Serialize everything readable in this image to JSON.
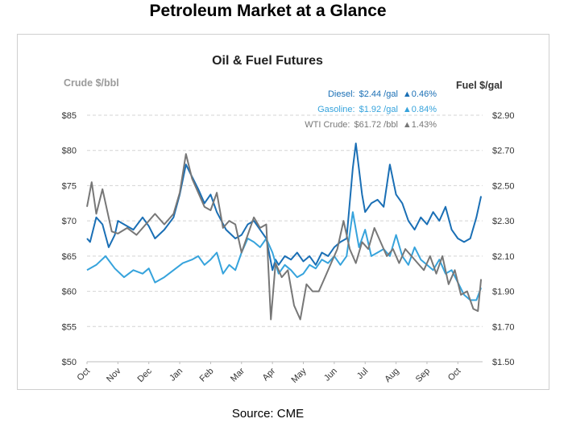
{
  "page": {
    "title": "Petroleum Market at a Glance",
    "source": "Source: CME"
  },
  "chart_data": {
    "type": "line",
    "title": "Oil & Fuel Futures",
    "left_axis_label": "Crude $/bbl",
    "right_axis_label": "Fuel $/gal",
    "left_ylim": [
      50,
      85
    ],
    "right_ylim": [
      1.5,
      2.9
    ],
    "left_ticks": [
      "$50",
      "$55",
      "$60",
      "$65",
      "$70",
      "$75",
      "$80",
      "$85"
    ],
    "right_ticks": [
      "$1.50",
      "$1.70",
      "$1.90",
      "$2.10",
      "$2.30",
      "$2.50",
      "$2.70",
      "$2.90"
    ],
    "x_labels": [
      "Oct",
      "Nov",
      "Dec",
      "Jan",
      "Feb",
      "Mar",
      "Apr",
      "May",
      "Jun",
      "Jul",
      "Aug",
      "Sep",
      "Oct"
    ],
    "grid": "horizontal dashed",
    "legend": [
      {
        "name": "Diesel:",
        "price": "$2.44 /gal",
        "change": "▲0.46%",
        "color": "#1a6fb5"
      },
      {
        "name": "Gasoline:",
        "price": "$1.92 /gal",
        "change": "▲0.84%",
        "color": "#36a3dc"
      },
      {
        "name": "WTI Crude:",
        "price": "$61.72 /bbl",
        "change": "▲1.43%",
        "color": "#777777"
      }
    ],
    "series": [
      {
        "name": "Diesel",
        "axis": "right",
        "color": "#1a6fb5",
        "x": [
          0,
          0.1,
          0.3,
          0.5,
          0.7,
          0.9,
          1.0,
          1.2,
          1.5,
          1.8,
          2.0,
          2.2,
          2.5,
          2.8,
          3.0,
          3.2,
          3.4,
          3.6,
          3.8,
          4.0,
          4.2,
          4.5,
          4.8,
          5.0,
          5.2,
          5.4,
          5.6,
          5.8,
          6.0,
          6.1,
          6.2,
          6.4,
          6.6,
          6.8,
          7.0,
          7.2,
          7.4,
          7.6,
          7.8,
          8.0,
          8.2,
          8.4,
          8.6,
          8.7,
          8.9,
          9.0,
          9.2,
          9.4,
          9.6,
          9.8,
          10.0,
          10.2,
          10.4,
          10.6,
          10.8,
          11.0,
          11.2,
          11.4,
          11.6,
          11.8,
          12.0,
          12.2,
          12.4,
          12.6,
          12.75
        ],
        "values": [
          2.2,
          2.18,
          2.32,
          2.28,
          2.15,
          2.22,
          2.3,
          2.28,
          2.25,
          2.32,
          2.27,
          2.2,
          2.25,
          2.32,
          2.45,
          2.62,
          2.55,
          2.48,
          2.4,
          2.45,
          2.35,
          2.25,
          2.2,
          2.22,
          2.28,
          2.3,
          2.25,
          2.2,
          2.02,
          2.08,
          2.05,
          2.1,
          2.08,
          2.12,
          2.07,
          2.1,
          2.05,
          2.12,
          2.1,
          2.15,
          2.18,
          2.2,
          2.6,
          2.74,
          2.45,
          2.35,
          2.4,
          2.42,
          2.38,
          2.62,
          2.45,
          2.4,
          2.3,
          2.25,
          2.32,
          2.28,
          2.35,
          2.3,
          2.38,
          2.25,
          2.2,
          2.18,
          2.2,
          2.32,
          2.44
        ]
      },
      {
        "name": "Gasoline",
        "axis": "right",
        "color": "#36a3dc",
        "x": [
          0,
          0.3,
          0.6,
          0.9,
          1.2,
          1.5,
          1.8,
          2.0,
          2.2,
          2.5,
          2.8,
          3.1,
          3.4,
          3.6,
          3.8,
          4.0,
          4.2,
          4.4,
          4.6,
          4.8,
          5.0,
          5.2,
          5.4,
          5.6,
          5.8,
          6.0,
          6.2,
          6.4,
          6.6,
          6.8,
          7.0,
          7.2,
          7.4,
          7.6,
          7.8,
          8.0,
          8.2,
          8.4,
          8.6,
          8.8,
          9.0,
          9.2,
          9.4,
          9.6,
          9.8,
          10.0,
          10.2,
          10.4,
          10.6,
          10.8,
          11.0,
          11.2,
          11.4,
          11.6,
          11.8,
          12.0,
          12.2,
          12.4,
          12.6,
          12.75
        ],
        "values": [
          2.02,
          2.05,
          2.1,
          2.03,
          1.98,
          2.02,
          2.0,
          2.03,
          1.95,
          1.98,
          2.02,
          2.06,
          2.08,
          2.1,
          2.05,
          2.08,
          2.12,
          2.0,
          2.05,
          2.02,
          2.12,
          2.2,
          2.18,
          2.15,
          2.2,
          2.12,
          2.0,
          2.05,
          2.02,
          1.98,
          2.0,
          2.05,
          2.03,
          2.08,
          2.06,
          2.1,
          2.05,
          2.1,
          2.35,
          2.15,
          2.25,
          2.1,
          2.12,
          2.14,
          2.1,
          2.22,
          2.1,
          2.05,
          2.15,
          2.08,
          2.05,
          2.02,
          2.08,
          2.0,
          2.02,
          1.95,
          1.88,
          1.85,
          1.85,
          1.92
        ]
      },
      {
        "name": "WTI Crude",
        "axis": "left",
        "color": "#777777",
        "x": [
          0,
          0.15,
          0.3,
          0.5,
          0.8,
          1.0,
          1.3,
          1.6,
          1.9,
          2.2,
          2.5,
          2.8,
          3.0,
          3.2,
          3.4,
          3.6,
          3.8,
          4.0,
          4.2,
          4.4,
          4.6,
          4.8,
          5.0,
          5.2,
          5.4,
          5.6,
          5.8,
          5.95,
          6.1,
          6.3,
          6.5,
          6.7,
          6.9,
          7.1,
          7.3,
          7.5,
          7.7,
          7.9,
          8.1,
          8.3,
          8.5,
          8.7,
          8.9,
          9.1,
          9.3,
          9.5,
          9.7,
          9.9,
          10.1,
          10.3,
          10.5,
          10.7,
          10.9,
          11.1,
          11.3,
          11.5,
          11.7,
          11.9,
          12.1,
          12.3,
          12.5,
          12.65,
          12.75
        ],
        "values": [
          72,
          75.5,
          71,
          74.5,
          68.5,
          68.2,
          69,
          68,
          69.5,
          71,
          69.5,
          71,
          74,
          79.5,
          76,
          74,
          72,
          71.5,
          74,
          69,
          70,
          69.5,
          65.5,
          68,
          70.5,
          69,
          69.5,
          56,
          64,
          62,
          63,
          58,
          56,
          61,
          60,
          60,
          62,
          64,
          66,
          70,
          66,
          64,
          67,
          66,
          69,
          67,
          65,
          66,
          64,
          66,
          65,
          64,
          63,
          65,
          62.5,
          65,
          61,
          63,
          59.5,
          60,
          57.5,
          57.2,
          61.72
        ]
      }
    ]
  }
}
